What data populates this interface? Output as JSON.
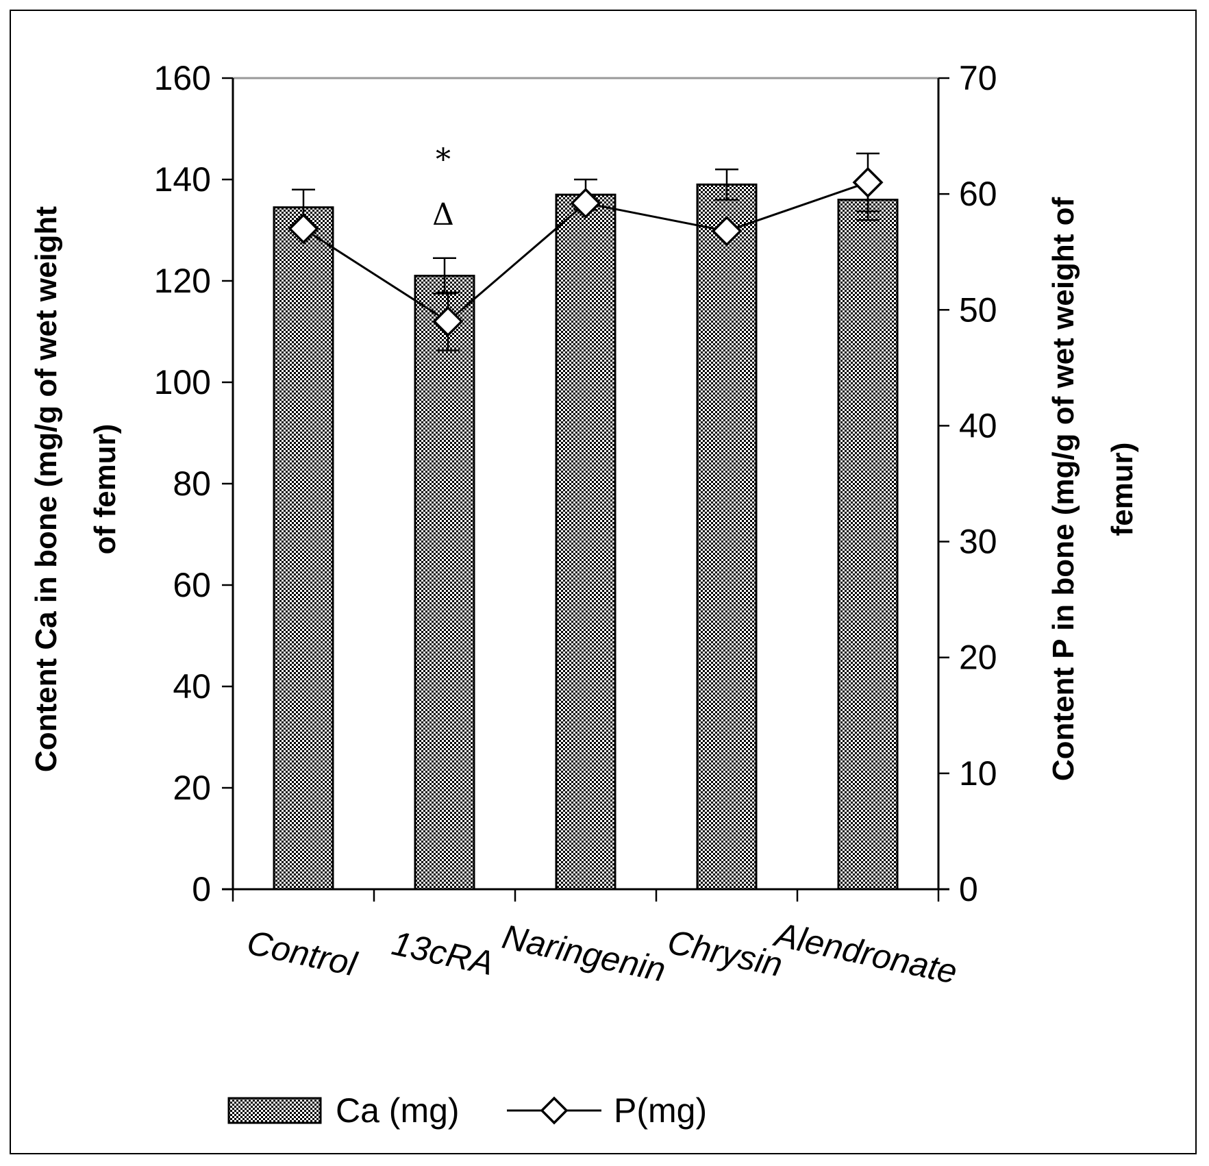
{
  "chart_data": {
    "type": "bar",
    "title": "",
    "categories": [
      "Control",
      "13cRA",
      "Naringenin",
      "Chrysin",
      "Alendronate"
    ],
    "series": [
      {
        "name": "Ca (mg)",
        "kind": "bar",
        "axis": "left",
        "values": [
          134.5,
          121,
          137,
          139,
          136
        ],
        "errors": [
          3.5,
          3.5,
          3,
          3,
          4
        ]
      },
      {
        "name": "P(mg)",
        "kind": "line",
        "marker": "diamond",
        "axis": "right",
        "values": [
          57,
          49,
          59.2,
          56.8,
          61
        ],
        "errors": [
          0.5,
          2.5,
          0.3,
          0.5,
          2.5
        ]
      }
    ],
    "y_left": {
      "label_line1": "Content Ca in bone (mg/g of wet weight",
      "label_line2": "of femur)",
      "min": 0,
      "max": 160,
      "ticks": [
        "0",
        "20",
        "40",
        "60",
        "80",
        "100",
        "120",
        "140",
        "160"
      ]
    },
    "y_right": {
      "label_line1": "Content P in bone (mg/g of wet weight of",
      "label_line2": "femur)",
      "min": 0,
      "max": 70,
      "ticks": [
        "0",
        "10",
        "20",
        "30",
        "40",
        "50",
        "60",
        "70"
      ]
    },
    "annotations": [
      {
        "category": "13cRA",
        "text": "*"
      },
      {
        "category": "13cRA",
        "text": "Δ"
      }
    ],
    "legend": {
      "placement": "bottom",
      "items": [
        "Ca (mg)",
        "P(mg)"
      ]
    },
    "colors": {
      "bar_fill": "#9a9a9a",
      "line": "#000000",
      "marker_fill": "#ffffff",
      "top_border": "#999999"
    }
  }
}
